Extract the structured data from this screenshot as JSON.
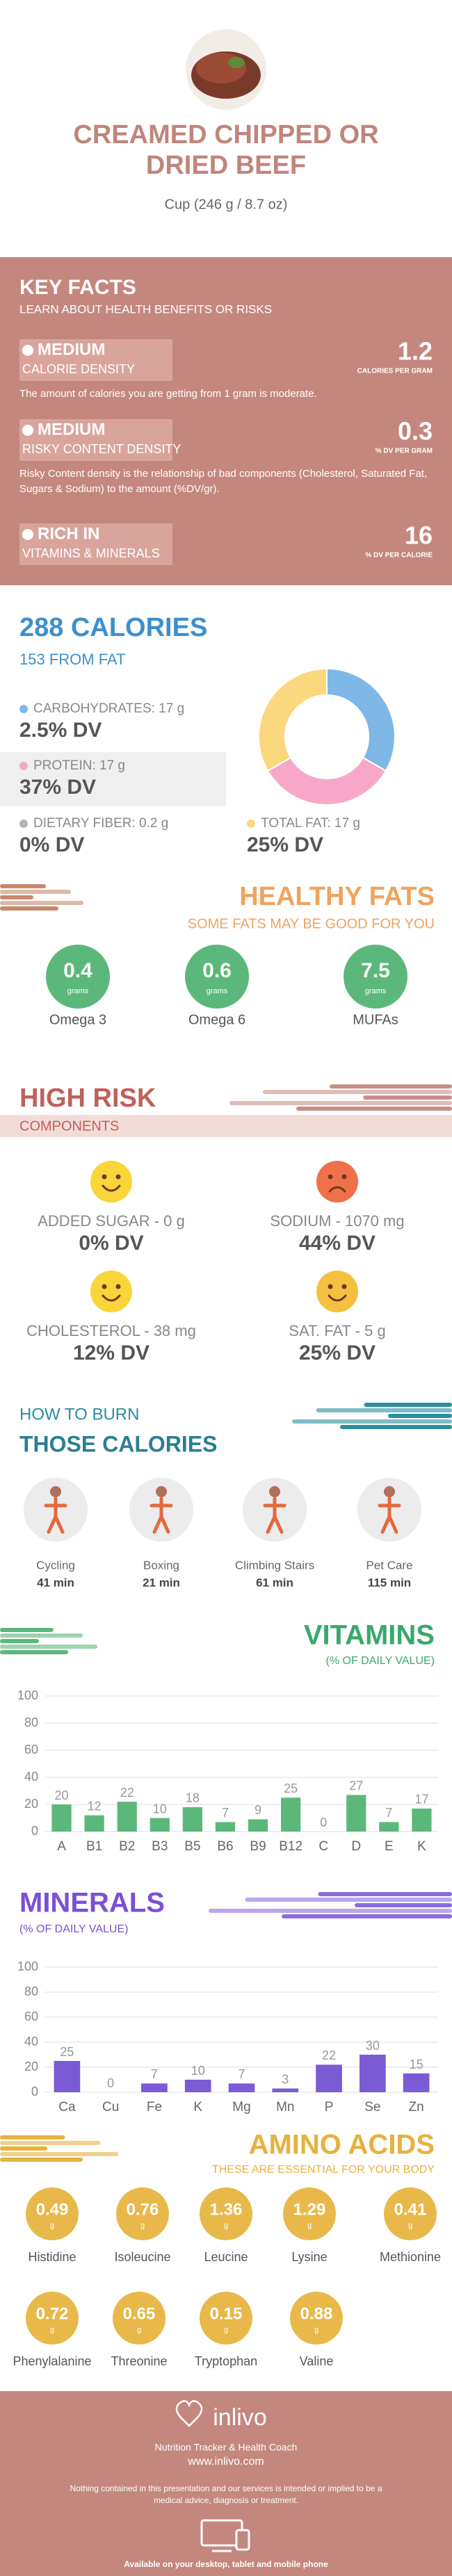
{
  "header": {
    "title": "CREAMED CHIPPED OR DRIED BEEF",
    "subtitle": "Cup (246 g / 8.7 oz)"
  },
  "key_facts": {
    "title": "KEY FACTS",
    "subtitle": "LEARN ABOUT HEALTH BENEFITS OR RISKS",
    "items": [
      {
        "level": "MEDIUM",
        "label": "CALORIE DENSITY",
        "value": 1.2,
        "unit": "CALORIES PER GRAM",
        "description": "The amount of calories you are getting from 1 gram is moderate."
      },
      {
        "level": "MEDIUM",
        "label": "RISKY CONTENT DENSITY",
        "value": 0.3,
        "unit": "% DV PER GRAM",
        "description": "Risky Content density is the relationship of bad components (Cholesterol, Saturated Fat, Sugars & Sodium) to the amount (%DV/gr)."
      },
      {
        "level": "RICH  IN",
        "label": "VITAMINS & MINERALS",
        "value": 16,
        "unit": "% DV PER CALORIE"
      }
    ]
  },
  "calories": {
    "title": "288 CALORIES",
    "subtitle": "153 FROM FAT",
    "items": [
      {
        "label": "CARBOHYDRATES: 17 g",
        "dv": "2.5% DV",
        "color": "#7fb8e6"
      },
      {
        "label": "PROTEIN: 17 g",
        "dv": "37% DV",
        "color": "#f7a8c8"
      },
      {
        "label": "DIETARY FIBER: 0.2 g",
        "dv": "0% DV",
        "color": "#b5b5b5"
      },
      {
        "label": "TOTAL FAT: 17 g",
        "dv": "25% DV",
        "color": "#fbd77e"
      }
    ]
  },
  "healthy_fats": {
    "title": "HEALTHY FATS",
    "subtitle": "SOME FATS MAY BE GOOD FOR YOU",
    "unit": "grams",
    "items": [
      {
        "name": "Omega 3",
        "value": 0.4
      },
      {
        "name": "Omega 6",
        "value": 0.6
      },
      {
        "name": "MUFAs",
        "value": 7.5
      }
    ]
  },
  "high_risk": {
    "title": "HIGH RISK",
    "subtitle": "COMPONENTS",
    "items": [
      {
        "label": "ADDED SUGAR - 0 g",
        "dv": "0% DV",
        "color": "#f9d53a",
        "face": "happy"
      },
      {
        "label": "SODIUM - 1070 mg",
        "dv": "44% DV",
        "color": "#f0704a",
        "face": "sad"
      },
      {
        "label": "CHOLESTEROL - 38 mg",
        "dv": "12% DV",
        "color": "#f9d53a",
        "face": "happy"
      },
      {
        "label": "SAT. FAT - 5 g",
        "dv": "25% DV",
        "color": "#f5c040",
        "face": "happy"
      }
    ]
  },
  "burn": {
    "title_top": "HOW TO BURN",
    "title": "THOSE CALORIES",
    "items": [
      {
        "name": "Cycling",
        "time": "41 min"
      },
      {
        "name": "Boxing",
        "time": "21 min"
      },
      {
        "name": "Climbing Stairs",
        "time": "61 min"
      },
      {
        "name": "Pet Care",
        "time": "115 min"
      }
    ]
  },
  "amino_acids": {
    "title": "AMINO ACIDS",
    "subtitle": "THESE ARE ESSENTIAL FOR YOUR BODY",
    "unit": "g",
    "items": [
      {
        "name": "Histidine",
        "value": 0.49
      },
      {
        "name": "Isoleucine",
        "value": 0.76
      },
      {
        "name": "Leucine",
        "value": 1.36
      },
      {
        "name": "Lysine",
        "value": 1.29
      },
      {
        "name": "Methionine",
        "value": 0.41
      },
      {
        "name": "Phenylalanine",
        "value": 0.72
      },
      {
        "name": "Threonine",
        "value": 0.65
      },
      {
        "name": "Tryptophan",
        "value": 0.15
      },
      {
        "name": "Valine",
        "value": 0.88
      }
    ]
  },
  "footer": {
    "brand": "inlivo",
    "tagline": "Nutrition Tracker & Health Coach",
    "url": "www.inlivo.com",
    "disclaimer": "Nothing contained in this presentation and our services is intended or implied to be a medical advice, diagnosis or treatment.",
    "available": "Available on your desktop, tablet and mobile phone"
  },
  "chart_data": [
    {
      "type": "donut",
      "values": [
        17,
        17,
        17
      ],
      "colors": [
        "#7fb8e6",
        "#f7a8c8",
        "#fbd77e"
      ]
    },
    {
      "type": "bar",
      "title": "VITAMINS",
      "subtitle": "(% OF DAILY VALUE)",
      "categories": [
        "A",
        "B1",
        "B2",
        "B3",
        "B5",
        "B6",
        "B9",
        "B12",
        "C",
        "D",
        "E",
        "K"
      ],
      "values": [
        20,
        12,
        22,
        10,
        18,
        7,
        9,
        25,
        0,
        27,
        7,
        17
      ],
      "color": "#5cb87a",
      "ylim": [
        0,
        100
      ],
      "yticks": [
        0,
        20,
        40,
        60,
        80,
        100
      ],
      "grid": true
    },
    {
      "type": "bar",
      "title": "MINERALS",
      "subtitle": "(% OF DAILY VALUE)",
      "categories": [
        "Ca",
        "Cu",
        "Fe",
        "K",
        "Mg",
        "Mn",
        "P",
        "Se",
        "Zn"
      ],
      "values": [
        25,
        0,
        7,
        10,
        7,
        3,
        22,
        30,
        15
      ],
      "color": "#7b5ad6",
      "ylim": [
        0,
        100
      ],
      "yticks": [
        0,
        20,
        40,
        60,
        80,
        100
      ],
      "grid": true
    }
  ]
}
